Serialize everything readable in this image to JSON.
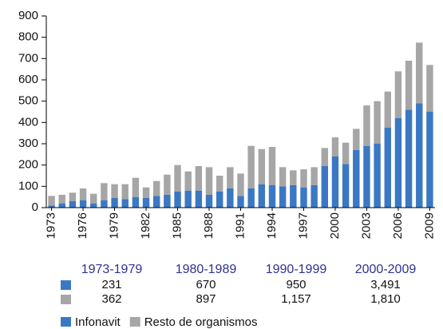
{
  "chart_data": {
    "type": "stacked_bar",
    "categories": [
      "1973",
      null,
      null,
      "1976",
      null,
      null,
      "1979",
      null,
      null,
      "1982",
      null,
      null,
      "1985",
      null,
      null,
      "1988",
      null,
      null,
      "1991",
      null,
      null,
      "1994",
      null,
      null,
      "1997",
      null,
      null,
      "2000",
      null,
      null,
      "2003",
      null,
      null,
      "2006",
      null,
      null,
      "2009"
    ],
    "series": [
      {
        "name": "Infonavit",
        "color": "#3b78c4",
        "values": [
          10,
          20,
          30,
          35,
          20,
          35,
          45,
          40,
          50,
          45,
          55,
          60,
          75,
          80,
          80,
          60,
          75,
          90,
          55,
          90,
          110,
          105,
          100,
          105,
          95,
          105,
          195,
          240,
          205,
          270,
          290,
          300,
          375,
          420,
          460,
          490,
          450
        ]
      },
      {
        "name": "Resto de organismos",
        "color": "#a6a6a6",
        "values": [
          45,
          40,
          40,
          55,
          45,
          80,
          65,
          70,
          90,
          50,
          70,
          95,
          125,
          90,
          115,
          130,
          75,
          100,
          105,
          200,
          165,
          180,
          90,
          70,
          85,
          85,
          85,
          90,
          100,
          100,
          190,
          200,
          170,
          220,
          230,
          285,
          220
        ]
      }
    ],
    "ylim": [
      0,
      900
    ],
    "yticks": [
      0,
      100,
      200,
      300,
      400,
      500,
      600,
      700,
      800,
      900
    ],
    "legend": "bottom-left",
    "summary": {
      "headers": [
        "1973-1979",
        "1980-1989",
        "1990-1999",
        "2000-2009"
      ],
      "rows": [
        [
          "231",
          "670",
          "950",
          "3,491"
        ],
        [
          "362",
          "897",
          "1,157",
          "1,810"
        ]
      ]
    }
  }
}
